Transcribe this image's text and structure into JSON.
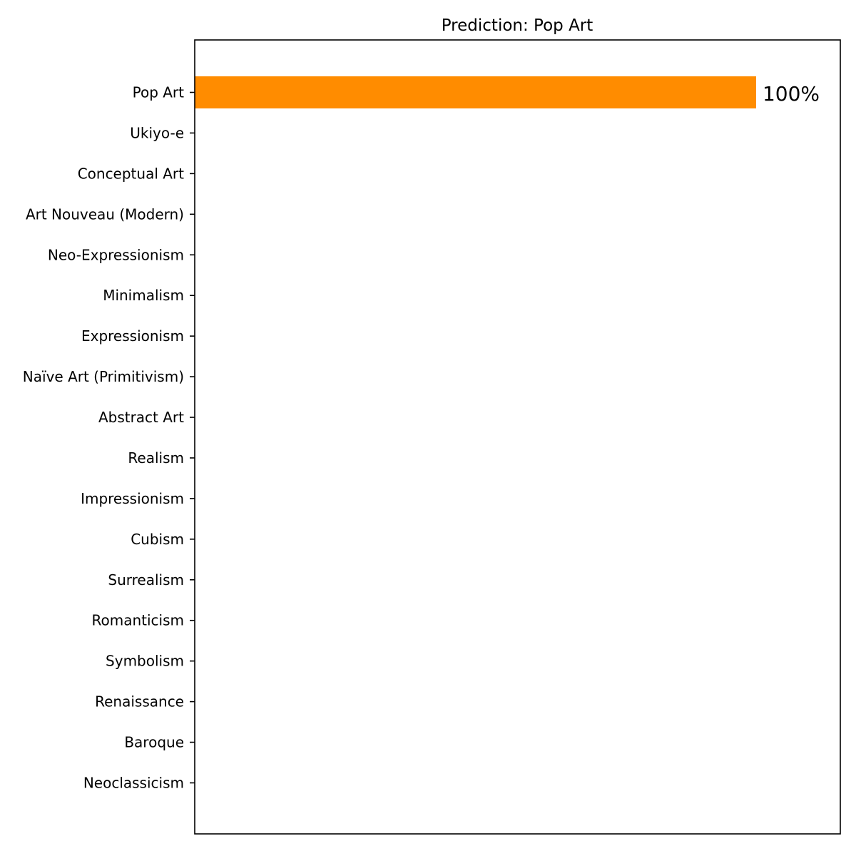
{
  "chart_data": {
    "type": "bar",
    "orientation": "horizontal",
    "title": "Prediction: Pop Art",
    "xlabel": "",
    "ylabel": "",
    "categories": [
      "Pop Art",
      "Ukiyo-e",
      "Conceptual Art",
      "Art Nouveau (Modern)",
      "Neo-Expressionism",
      "Minimalism",
      "Expressionism",
      "Naïve Art (Primitivism)",
      "Abstract Art",
      "Realism",
      "Impressionism",
      "Cubism",
      "Surrealism",
      "Romanticism",
      "Symbolism",
      "Renaissance",
      "Baroque",
      "Neoclassicism"
    ],
    "values": [
      100,
      0,
      0,
      0,
      0,
      0,
      0,
      0,
      0,
      0,
      0,
      0,
      0,
      0,
      0,
      0,
      0,
      0
    ],
    "value_labels": [
      "100%",
      "",
      "",
      "",
      "",
      "",
      "",
      "",
      "",
      "",
      "",
      "",
      "",
      "",
      "",
      "",
      "",
      ""
    ],
    "xlim": [
      0,
      115
    ],
    "x_ticks_visible": false,
    "grid": false,
    "bar_color": "#ff8c00",
    "axis_color": "#000000"
  }
}
